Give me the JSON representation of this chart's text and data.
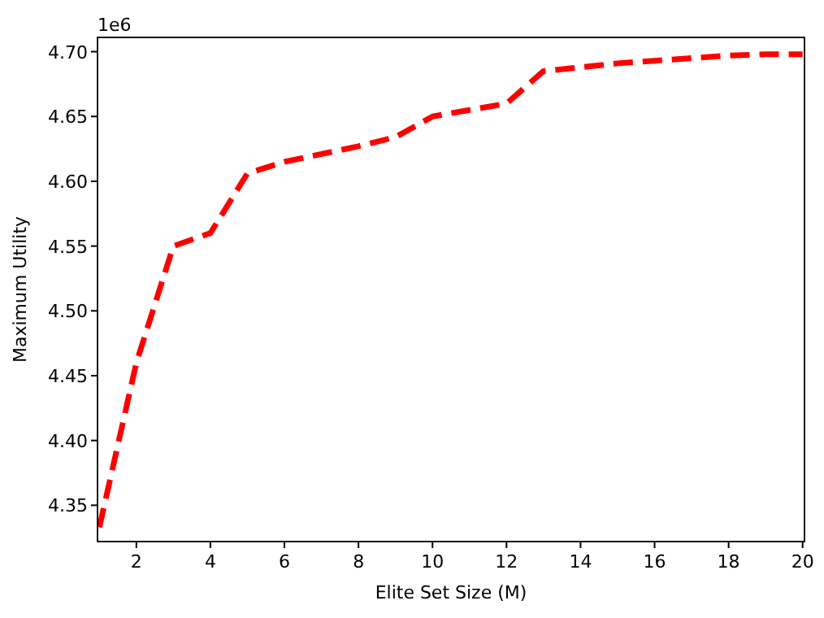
{
  "chart_data": {
    "type": "line",
    "xlabel": "Elite Set Size (M)",
    "ylabel": "Maximum Utility",
    "annotations": [
      "1e6"
    ],
    "x": [
      1,
      2,
      3,
      4,
      5,
      6,
      7,
      8,
      9,
      10,
      11,
      12,
      13,
      14,
      15,
      16,
      17,
      18,
      19,
      20
    ],
    "series": [
      {
        "color": "#ff0000",
        "values": [
          4.333,
          4.46,
          4.55,
          4.56,
          4.606,
          4.615,
          4.621,
          4.627,
          4.634,
          4.65,
          4.655,
          4.66,
          4.685,
          4.688,
          4.691,
          4.693,
          4.695,
          4.697,
          4.698,
          4.698
        ]
      }
    ],
    "xlim": [
      0.95,
      20.05
    ],
    "ylim": [
      4.322,
      4.711
    ],
    "xticks": [
      2,
      4,
      6,
      8,
      10,
      12,
      14,
      16,
      18,
      20
    ],
    "yticks": [
      {
        "value": 4.35,
        "label": "4.35"
      },
      {
        "value": 4.4,
        "label": "4.40"
      },
      {
        "value": 4.45,
        "label": "4.45"
      },
      {
        "value": 4.5,
        "label": "4.50"
      },
      {
        "value": 4.55,
        "label": "4.55"
      },
      {
        "value": 4.6,
        "label": "4.60"
      },
      {
        "value": 4.65,
        "label": "4.65"
      },
      {
        "value": 4.7,
        "label": "4.70"
      }
    ],
    "line_style": "dashed"
  }
}
